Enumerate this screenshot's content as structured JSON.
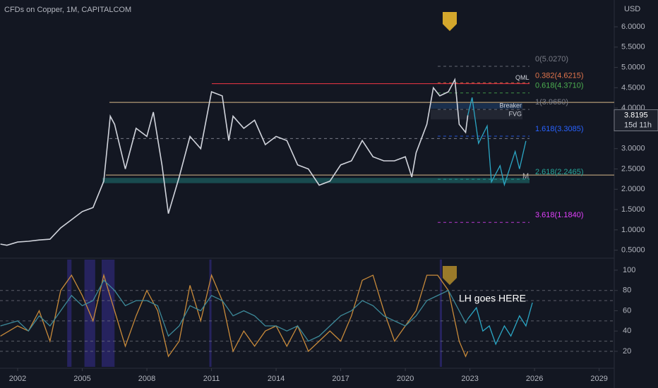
{
  "chart_data": [
    {
      "type": "line",
      "title": "CFDs on Copper, 1M, CAPITALCOM",
      "axis_label": "USD",
      "xlim": [
        2001.18,
        2029.7
      ],
      "ylim": [
        0.32,
        6.66
      ],
      "yticks": [
        {
          "value": 0.5,
          "label": "0.5000"
        },
        {
          "value": 1,
          "label": "1.0000"
        },
        {
          "value": 1.5,
          "label": "1.5000"
        },
        {
          "value": 2,
          "label": "2.0000"
        },
        {
          "value": 2.5,
          "label": "2.5000"
        },
        {
          "value": 3,
          "label": "3.0000"
        },
        {
          "value": 3.5,
          "label": "3.5000"
        },
        {
          "value": 4,
          "label": "4.0000"
        },
        {
          "value": 4.5,
          "label": "4.5000"
        },
        {
          "value": 5,
          "label": "5.0000"
        },
        {
          "value": 5.5,
          "label": "5.5000"
        },
        {
          "value": 6,
          "label": "6.0000"
        }
      ],
      "series": [
        {
          "color": "#d1d4dc",
          "x": [
            2001.2,
            2001.5,
            2002,
            2002.5,
            2003,
            2003.5,
            2004,
            2004.5,
            2005,
            2005.5,
            2006,
            2006.3,
            2006.5,
            2007,
            2007.5,
            2008,
            2008.3,
            2008.7,
            2009,
            2009.5,
            2010,
            2010.5,
            2011,
            2011.5,
            2011.8,
            2012,
            2012.5,
            2013,
            2013.5,
            2014,
            2014.5,
            2015,
            2015.5,
            2016,
            2016.5,
            2017,
            2017.5,
            2018,
            2018.5,
            2019,
            2019.5,
            2020,
            2020.3,
            2020.5,
            2021,
            2021.3,
            2021.6,
            2022,
            2022.3,
            2022.5,
            2022.8,
            2022.9
          ],
          "values": [
            0.65,
            0.62,
            0.7,
            0.72,
            0.75,
            0.77,
            1.05,
            1.25,
            1.45,
            1.55,
            2.2,
            3.8,
            3.6,
            2.5,
            3.5,
            3.3,
            3.9,
            2.6,
            1.4,
            2.3,
            3.3,
            3.0,
            4.4,
            4.3,
            3.2,
            3.8,
            3.5,
            3.7,
            3.1,
            3.3,
            3.2,
            2.6,
            2.5,
            2.1,
            2.2,
            2.6,
            2.7,
            3.2,
            2.8,
            2.7,
            2.7,
            2.8,
            2.3,
            2.9,
            3.6,
            4.5,
            4.3,
            4.4,
            4.7,
            3.6,
            3.4,
            3.8195
          ]
        },
        {
          "color": "#2ba6c4",
          "x": [
            2022.9,
            2023.1,
            2023.4,
            2023.8,
            2024.0,
            2024.4,
            2024.6,
            2025.1,
            2025.3,
            2025.6
          ],
          "values": [
            3.8195,
            4.26,
            3.13,
            3.56,
            2.18,
            2.58,
            2.11,
            2.93,
            2.5,
            3.19
          ]
        }
      ],
      "lines": [
        {
          "value": 4.6,
          "color": "#f23645",
          "label": "QML"
        },
        {
          "value": 4.14,
          "color": "#d8b98a"
        },
        {
          "value": 3.25,
          "color": "#787b86"
        },
        {
          "value": 2.35,
          "color": "#d8b98a"
        }
      ],
      "zone": {
        "low": 2.15,
        "high": 2.28,
        "color": "#1e6e6e",
        "label": "M"
      },
      "boxes": [
        {
          "low": 3.98,
          "high": 4.12,
          "label": "Breaker"
        },
        {
          "low": 3.72,
          "high": 3.96,
          "label": "FVG"
        }
      ],
      "fib_levels": [
        {
          "label": "0(5.0270)",
          "value": 5.027,
          "color": "#787b86"
        },
        {
          "label": "0.382(4.6215)",
          "value": 4.6215,
          "color": "#e0744b"
        },
        {
          "label": "0.618(4.3710)",
          "value": 4.371,
          "color": "#4caf50"
        },
        {
          "label": "1(3.9650)",
          "value": 3.965,
          "color": "#787b86"
        },
        {
          "label": "1.618(3.3085)",
          "value": 3.3085,
          "color": "#2962ff"
        },
        {
          "label": "2.618(2.2465)",
          "value": 2.2465,
          "color": "#26a69a"
        },
        {
          "label": "3.618(1.1840)",
          "value": 1.184,
          "color": "#e040fb"
        }
      ],
      "last_price": 3.8195,
      "countdown": "15d 11h"
    },
    {
      "type": "line",
      "xlim": [
        2001.18,
        2029.7
      ],
      "ylim": [
        4.7,
        110.4
      ],
      "xticks": [
        2002,
        2005,
        2008,
        2011,
        2014,
        2017,
        2020,
        2023,
        2026,
        2029
      ],
      "yticks": [
        20,
        40,
        60,
        80,
        100
      ],
      "levels": [
        80,
        70,
        50,
        30,
        20
      ],
      "bands": [
        [
          2004.3,
          2004.5
        ],
        [
          2005.1,
          2005.6
        ],
        [
          2005.9,
          2006.5
        ],
        [
          2010.9,
          2011.0
        ],
        [
          2021.6,
          2021.7
        ]
      ],
      "annotation": "LH goes HERE",
      "series": [
        {
          "color": "#c88a3a",
          "x": [
            2001.2,
            2002,
            2002.5,
            2003,
            2003.5,
            2004,
            2004.5,
            2005,
            2005.5,
            2006,
            2006.5,
            2007,
            2007.5,
            2008,
            2008.5,
            2009,
            2009.5,
            2010,
            2010.5,
            2011,
            2011.5,
            2012,
            2012.5,
            2013,
            2013.5,
            2014,
            2014.5,
            2015,
            2015.5,
            2016,
            2016.5,
            2017,
            2017.5,
            2018,
            2018.5,
            2019,
            2019.5,
            2020,
            2020.5,
            2021,
            2021.5,
            2022,
            2022.5,
            2022.8,
            2022.9
          ],
          "values": [
            35,
            45,
            40,
            60,
            30,
            80,
            95,
            75,
            50,
            95,
            60,
            25,
            55,
            80,
            60,
            15,
            30,
            85,
            50,
            95,
            70,
            20,
            40,
            25,
            40,
            45,
            25,
            45,
            20,
            30,
            40,
            30,
            55,
            90,
            95,
            60,
            30,
            45,
            60,
            95,
            95,
            80,
            30,
            15,
            20
          ]
        },
        {
          "color": "#3d8a9a",
          "x": [
            2001.2,
            2002,
            2002.5,
            2003,
            2003.5,
            2004,
            2004.5,
            2005,
            2005.5,
            2006,
            2006.5,
            2007,
            2007.5,
            2008,
            2008.5,
            2009,
            2009.5,
            2010,
            2010.5,
            2011,
            2011.5,
            2012,
            2012.5,
            2013,
            2013.5,
            2014,
            2014.5,
            2015,
            2015.5,
            2016,
            2016.5,
            2017,
            2017.5,
            2018,
            2018.5,
            2019,
            2019.5,
            2020,
            2020.5,
            2021,
            2021.5,
            2022,
            2022.5,
            2022.8,
            2022.9
          ],
          "values": [
            45,
            50,
            40,
            55,
            45,
            60,
            75,
            65,
            70,
            90,
            80,
            65,
            70,
            70,
            65,
            35,
            45,
            65,
            60,
            75,
            70,
            55,
            60,
            55,
            45,
            45,
            40,
            45,
            30,
            35,
            45,
            55,
            60,
            70,
            65,
            55,
            50,
            45,
            55,
            70,
            75,
            80,
            60,
            48,
            52
          ]
        },
        {
          "color": "#2ba6c4",
          "x": [
            2022.9,
            2023.3,
            2023.6,
            2023.9,
            2024.2,
            2024.6,
            2024.9,
            2025.3,
            2025.6,
            2025.9
          ],
          "values": [
            52,
            63,
            40,
            45,
            27,
            45,
            35,
            55,
            45,
            68
          ]
        }
      ]
    }
  ]
}
